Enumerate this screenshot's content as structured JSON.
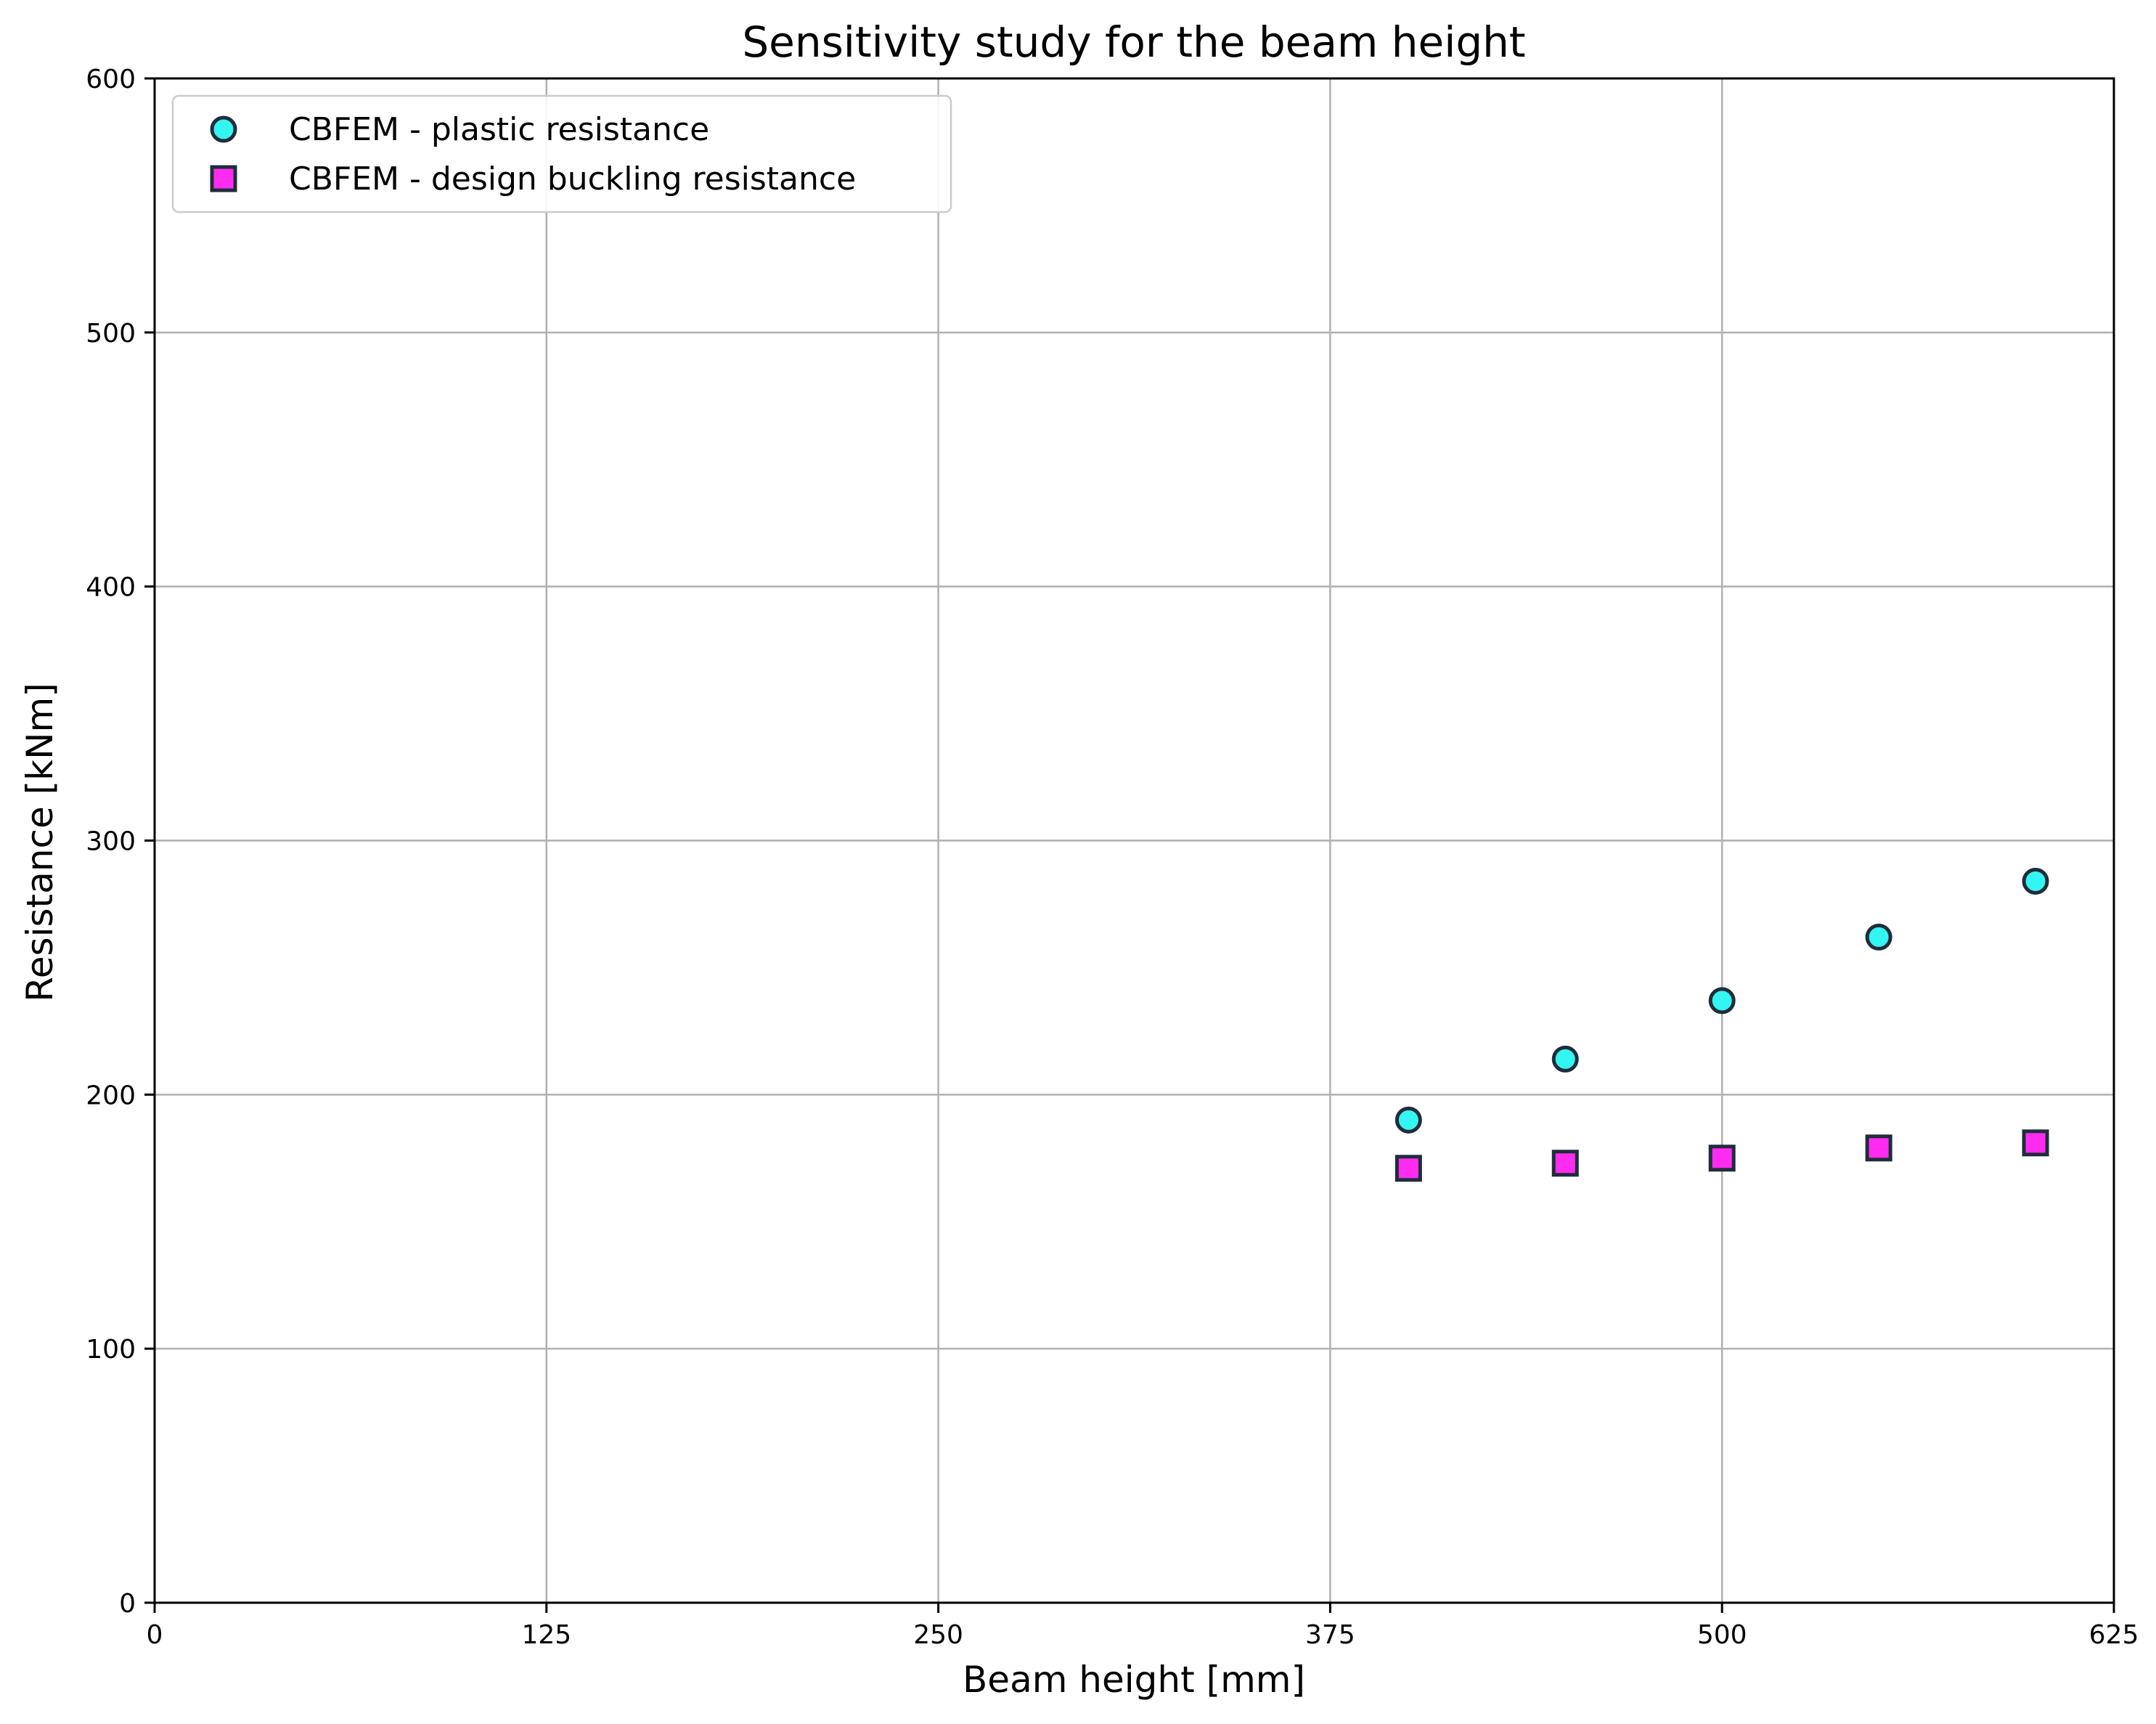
{
  "chart_data": {
    "type": "scatter",
    "title": "Sensitivity study for the beam height",
    "xlabel": "Beam height [mm]",
    "ylabel": "Resistance [kNm]",
    "xlim": [
      0,
      625
    ],
    "ylim": [
      0,
      600
    ],
    "xticks": [
      0,
      125,
      250,
      375,
      500,
      625
    ],
    "yticks": [
      0,
      100,
      200,
      300,
      400,
      500,
      600
    ],
    "grid": true,
    "legend_position": "top-left",
    "series": [
      {
        "name": "CBFEM - plastic resistance",
        "marker": "circle",
        "color": "#33f5f2",
        "edge_color": "#1f2d3a",
        "x": [
          400,
          450,
          500,
          550,
          600
        ],
        "y": [
          190,
          214,
          237,
          262,
          284
        ]
      },
      {
        "name": "CBFEM - design buckling resistance",
        "marker": "square",
        "color": "#ff2bf0",
        "edge_color": "#1f2d3a",
        "x": [
          400,
          450,
          500,
          550,
          600
        ],
        "y": [
          171,
          173,
          175,
          179,
          181
        ]
      }
    ]
  }
}
